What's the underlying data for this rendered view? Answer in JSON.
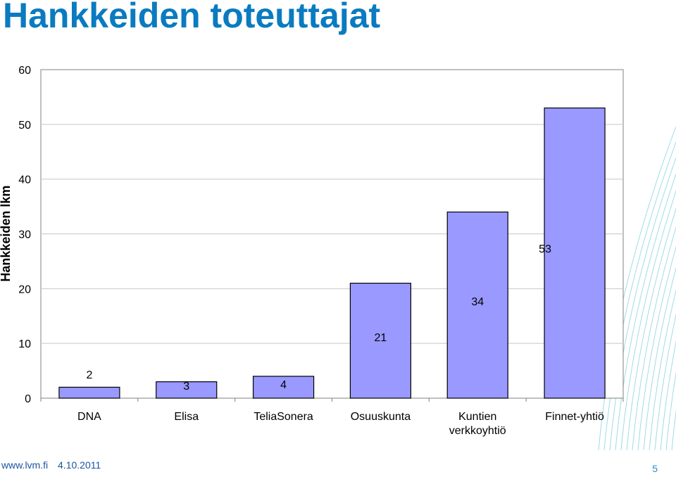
{
  "slide": {
    "title": "Hankkeiden toteuttajat",
    "footer_url": "www.lvm.fi",
    "footer_date": "4.10.2011",
    "page_number": "5"
  },
  "colors": {
    "title": "#0a7bc0",
    "bar_fill": "#9999ff",
    "bar_stroke": "#000000",
    "decor_lines": "#8fd3e8",
    "footer_text": "#1a55a0",
    "page_number": "#2a8fc4"
  },
  "chart_data": {
    "type": "bar",
    "categories": [
      "DNA",
      "Elisa",
      "TeliaSonera",
      "Osuuskunta",
      "Kuntien verkkoyhtiö",
      "Finnet-yhtiö"
    ],
    "values": [
      2,
      3,
      4,
      21,
      34,
      53
    ],
    "data_labels": [
      "2",
      "3",
      "4",
      "21",
      "34",
      "53"
    ],
    "title": "",
    "xlabel": "",
    "ylabel": "Hankkeiden lkm",
    "ylim": [
      0,
      60
    ],
    "yticks": [
      0,
      10,
      20,
      30,
      40,
      50,
      60
    ],
    "grid": true,
    "legend": "none"
  }
}
